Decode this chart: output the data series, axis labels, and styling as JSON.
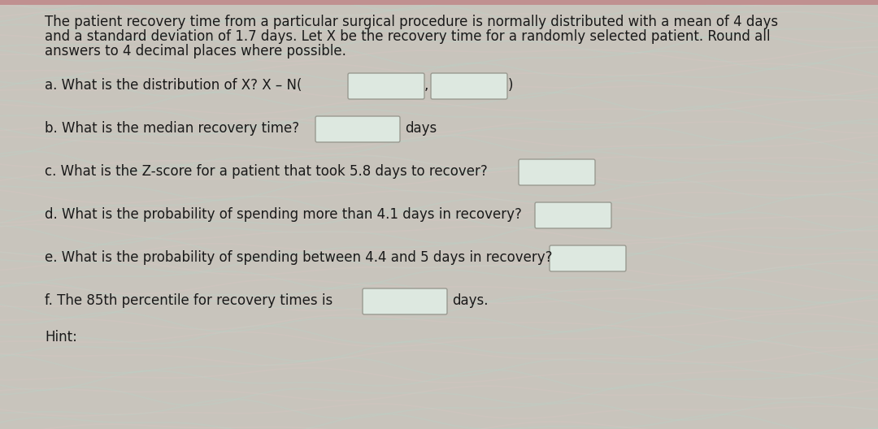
{
  "background_color": "#c8c4bc",
  "wave_color1": "#b8d4c8",
  "wave_color2": "#e8c8c8",
  "text_color": "#1a1a1a",
  "intro_text_line1": "The patient recovery time from a particular surgical procedure is normally distributed with a mean of 4 days",
  "intro_text_line2": "and a standard deviation of 1.7 days. Let X be the recovery time for a randomly selected patient. Round all",
  "intro_text_line3": "answers to 4 decimal places where possible.",
  "q_a_label": "a. What is the distribution of X? X – N(",
  "q_a_suffix": ")",
  "q_b_label": "b. What is the median recovery time?",
  "q_b_suffix": "days",
  "q_c_label": "c. What is the Z-score for a patient that took 5.8 days to recover?",
  "q_d_label": "d. What is the probability of spending more than 4.1 days in recovery?",
  "q_e_label": "e. What is the probability of spending between 4.4 and 5 days in recovery?",
  "q_f_label": "f. The 85th percentile for recovery times is",
  "q_f_suffix": "days.",
  "hint_text": "Hint:",
  "box_face_color": "#dde8e0",
  "box_edge_color": "#999990",
  "font_size": 11.5,
  "figsize": [
    10.8,
    5.28
  ],
  "dpi": 100,
  "top_bar_color": "#c0b0a0"
}
